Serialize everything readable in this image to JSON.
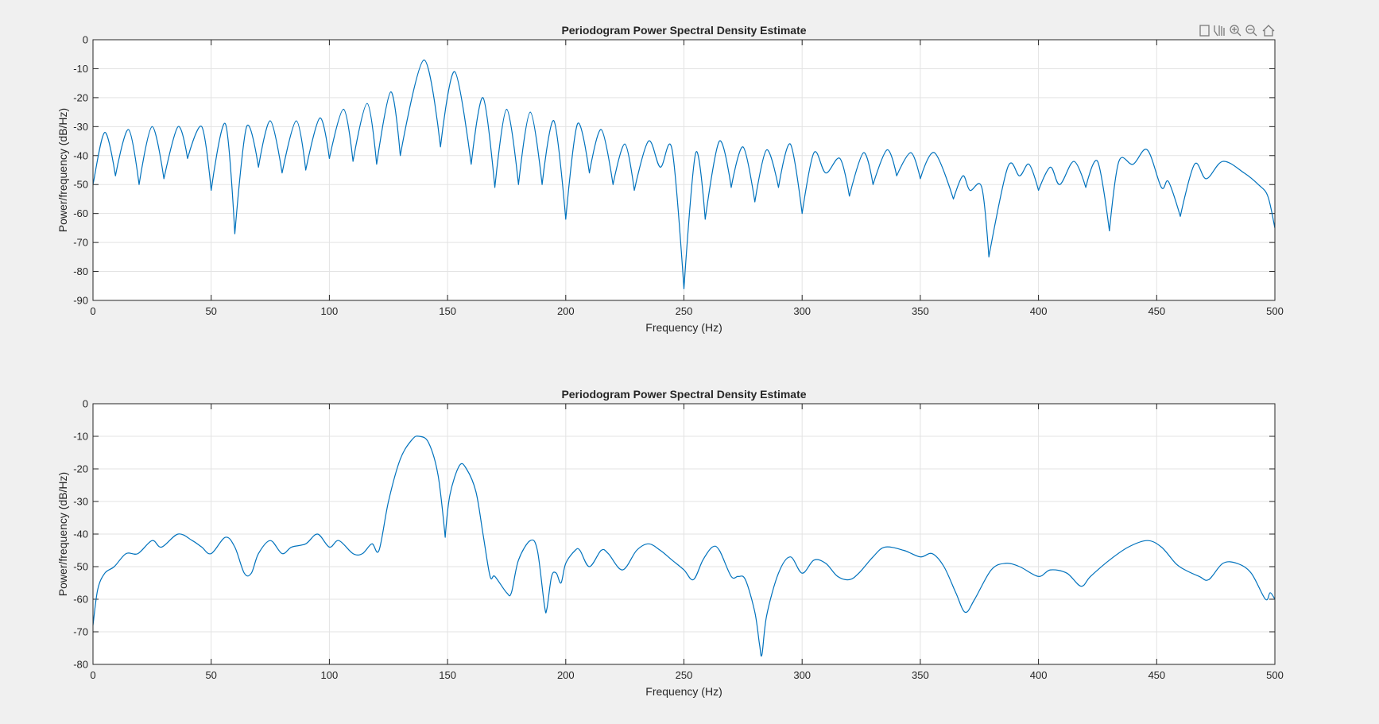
{
  "chart_data": [
    {
      "type": "line",
      "title": "Periodogram Power Spectral Density Estimate",
      "xlabel": "Frequency (Hz)",
      "ylabel": "Power/frequency (dB/Hz)",
      "color": "#0072bd",
      "grid": true,
      "xlim": [
        0,
        500
      ],
      "xticks": [
        0,
        50,
        100,
        150,
        200,
        250,
        300,
        350,
        400,
        450,
        500
      ],
      "ylim": [
        -90,
        0
      ],
      "yticks": [
        0,
        -10,
        -20,
        -30,
        -40,
        -50,
        -60,
        -70,
        -80,
        -90
      ],
      "x": [
        0,
        5,
        9.5,
        15,
        19.5,
        25,
        30,
        36,
        40,
        46,
        50,
        56,
        60,
        65,
        70,
        75,
        80,
        86,
        90,
        96,
        100,
        106,
        110,
        116,
        120,
        126,
        130,
        140,
        147,
        153,
        160,
        165,
        170,
        175,
        180,
        185,
        190,
        195,
        200,
        205,
        210,
        215,
        220,
        225,
        229,
        235,
        240,
        245,
        250,
        255,
        259,
        265,
        270,
        275,
        280,
        285,
        290,
        295,
        300,
        305,
        310,
        316,
        320,
        326,
        330,
        336,
        340,
        346,
        350,
        356,
        364,
        368,
        371,
        376,
        379,
        387,
        392,
        396,
        400,
        405,
        409,
        415,
        420,
        425,
        430,
        434,
        440,
        446,
        452,
        455,
        460,
        466,
        471,
        478,
        487,
        493,
        497,
        500
      ],
      "values": [
        -50,
        -32,
        -47,
        -31,
        -50,
        -30,
        -48,
        -30,
        -41,
        -30,
        -52,
        -29,
        -67,
        -30,
        -44,
        -28,
        -46,
        -28,
        -45,
        -27,
        -41,
        -24,
        -42,
        -22,
        -43,
        -18,
        -40,
        -7,
        -37,
        -11,
        -43,
        -20,
        -51,
        -24,
        -50,
        -25,
        -50,
        -28,
        -62,
        -29,
        -46,
        -31,
        -50,
        -36,
        -52,
        -35,
        -44,
        -38,
        -86,
        -39,
        -62,
        -35,
        -51,
        -37,
        -56,
        -38,
        -51,
        -36,
        -60,
        -39,
        -46,
        -41,
        -54,
        -39,
        -50,
        -38,
        -47,
        -39,
        -48,
        -39,
        -55,
        -47,
        -52,
        -51,
        -75,
        -44,
        -47,
        -43,
        -52,
        -44,
        -50,
        -42,
        -51,
        -42,
        -66,
        -42,
        -43,
        -38,
        -51,
        -49,
        -61,
        -43,
        -48,
        -42,
        -46,
        -50,
        -54,
        -65
      ]
    },
    {
      "type": "line",
      "title": "Periodogram Power Spectral Density Estimate",
      "xlabel": "Frequency (Hz)",
      "ylabel": "Power/frequency (dB/Hz)",
      "color": "#0072bd",
      "grid": true,
      "xlim": [
        0,
        500
      ],
      "xticks": [
        0,
        50,
        100,
        150,
        200,
        250,
        300,
        350,
        400,
        450,
        500
      ],
      "ylim": [
        -80,
        0
      ],
      "yticks": [
        0,
        -10,
        -20,
        -30,
        -40,
        -50,
        -60,
        -70,
        -80
      ],
      "x": [
        0,
        2,
        5,
        9,
        14,
        19,
        25,
        29,
        36,
        42,
        46,
        50,
        56,
        60,
        64,
        67,
        70,
        75,
        80,
        84,
        90,
        95,
        100,
        104,
        110,
        114,
        118,
        121,
        125,
        130,
        135,
        138,
        142,
        146,
        149,
        151,
        155,
        158,
        162,
        165,
        168,
        170,
        175,
        177,
        180,
        185,
        188,
        191,
        192,
        194,
        196,
        198,
        200,
        204,
        206,
        210,
        215,
        218,
        224,
        230,
        235,
        240,
        245,
        250,
        254,
        258,
        262,
        265,
        270,
        273,
        276,
        280,
        282,
        283,
        285,
        290,
        295,
        300,
        305,
        310,
        315,
        320,
        324,
        330,
        335,
        343,
        350,
        355,
        360,
        365,
        369,
        373,
        380,
        386,
        392,
        400,
        405,
        412,
        418,
        422,
        430,
        438,
        446,
        452,
        458,
        462,
        468,
        472,
        478,
        484,
        490,
        496,
        498,
        500
      ],
      "values": [
        -68,
        -57,
        -52,
        -50,
        -46,
        -46,
        -42,
        -44,
        -40,
        -42,
        -44,
        -46,
        -41,
        -44,
        -52,
        -52,
        -46,
        -42,
        -46,
        -44,
        -43,
        -40,
        -44,
        -42,
        -46,
        -46,
        -43,
        -45,
        -30,
        -17,
        -11,
        -10,
        -12,
        -22,
        -41,
        -28,
        -19,
        -20,
        -27,
        -40,
        -53,
        -53,
        -58,
        -58,
        -48,
        -42,
        -45,
        -62,
        -63,
        -53,
        -52,
        -55,
        -49,
        -45,
        -45,
        -50,
        -45,
        -46,
        -51,
        -45,
        -43,
        -45,
        -48,
        -51,
        -54,
        -48,
        -44,
        -45,
        -53,
        -53,
        -54,
        -64,
        -74,
        -77,
        -65,
        -52,
        -47,
        -52,
        -48,
        -49,
        -53,
        -54,
        -52,
        -47,
        -44,
        -45,
        -47,
        -46,
        -50,
        -58,
        -64,
        -60,
        -51,
        -49,
        -50,
        -53,
        -51,
        -52,
        -56,
        -53,
        -48,
        -44,
        -42,
        -44,
        -49,
        -51,
        -53,
        -54,
        -49,
        -49,
        -52,
        -60,
        -58,
        -60
      ]
    }
  ]
}
